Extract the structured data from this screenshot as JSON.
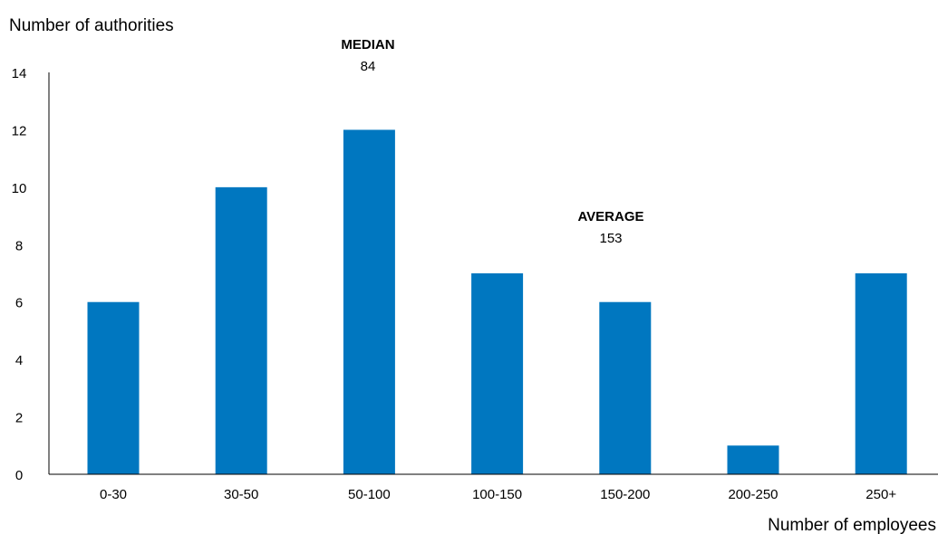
{
  "chart_data": {
    "type": "bar",
    "categories": [
      "0-30",
      "30-50",
      "50-100",
      "100-150",
      "150-200",
      "200-250",
      "250+"
    ],
    "values": [
      6,
      10,
      12,
      7,
      6,
      1,
      7
    ],
    "ylabel": "Number of authorities",
    "xlabel": "Number of employees",
    "ylim": [
      0,
      14
    ],
    "yticks": [
      0,
      2,
      4,
      6,
      8,
      10,
      12,
      14
    ],
    "grid": false,
    "bar_color": "#0077C0",
    "annotations": [
      {
        "label": "MEDIAN",
        "value": "84"
      },
      {
        "label": "AVERAGE",
        "value": "153"
      }
    ]
  }
}
